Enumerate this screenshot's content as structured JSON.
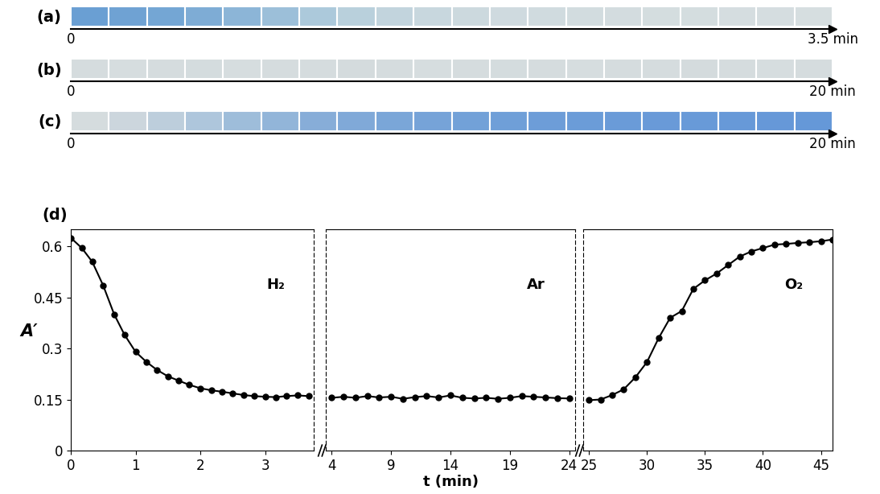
{
  "chart_data": [
    {
      "type": "strip",
      "panel_label": "(a)",
      "xlim": [
        0,
        3.5
      ],
      "xticks": [
        0,
        {
          "value": 3.5,
          "label": "3.5 min"
        }
      ],
      "colors": [
        "#6a9fd3",
        "#6fa2d3",
        "#74a6d4",
        "#7eacd5",
        "#8cb5d7",
        "#9cbfd9",
        "#acc9db",
        "#b9d0dc",
        "#c2d4dd",
        "#c8d7de",
        "#ccd9de",
        "#cfdadf",
        "#d0dbdf",
        "#d2dcdf",
        "#d3dcdf",
        "#d4dddf",
        "#d4dddf",
        "#d5dde0",
        "#d5dde0",
        "#d6dee0"
      ]
    },
    {
      "type": "strip",
      "panel_label": "(b)",
      "xlim": [
        0,
        20
      ],
      "xticks": [
        0,
        {
          "value": 20,
          "label": "20 min"
        }
      ],
      "colors": [
        "#d5dcde",
        "#d6dddf",
        "#d5dcde",
        "#d4dcde",
        "#d6dddf",
        "#d5dcde",
        "#d5dcde",
        "#d4dbdd",
        "#d5dcde",
        "#d6dddf",
        "#d5dcde",
        "#d4dcde",
        "#d5dcde",
        "#d6dddf",
        "#d5dcde",
        "#d5dcde",
        "#d4dbdd",
        "#d5dcde",
        "#d6dddf",
        "#d5dcde"
      ]
    },
    {
      "type": "strip",
      "panel_label": "(c)",
      "xlim": [
        0,
        20
      ],
      "xticks": [
        0,
        {
          "value": 20,
          "label": "20 min"
        }
      ],
      "colors": [
        "#d5dcde",
        "#ccd6dd",
        "#bdcedc",
        "#aec6dc",
        "#9ebdda",
        "#92b5d9",
        "#87add8",
        "#80a9d8",
        "#7aa6d8",
        "#76a3d8",
        "#72a1d8",
        "#6f9fd8",
        "#6d9dd8",
        "#6b9cd8",
        "#6a9bd8",
        "#699ad8",
        "#689ad8",
        "#6799d8",
        "#6698d8",
        "#6598d8"
      ]
    },
    {
      "type": "line",
      "panel_label": "(d)",
      "y_label": "A′",
      "annotation": "H₂",
      "color": "#000000",
      "marker": "o",
      "line_style": "solid",
      "xlim": [
        0,
        3.75
      ],
      "xticks": [
        0,
        1,
        2,
        3
      ],
      "ylim": [
        0,
        0.65
      ],
      "yticks": [
        0,
        0.15,
        0.3,
        0.45,
        0.6
      ],
      "x": [
        0,
        0.17,
        0.33,
        0.5,
        0.67,
        0.83,
        1,
        1.17,
        1.33,
        1.5,
        1.67,
        1.83,
        2,
        2.17,
        2.33,
        2.5,
        2.67,
        2.83,
        3,
        3.17,
        3.33,
        3.5,
        3.67
      ],
      "values": [
        0.625,
        0.595,
        0.555,
        0.485,
        0.4,
        0.34,
        0.29,
        0.26,
        0.237,
        0.218,
        0.205,
        0.193,
        0.183,
        0.177,
        0.173,
        0.168,
        0.163,
        0.16,
        0.158,
        0.157,
        0.16,
        0.162,
        0.16
      ]
    },
    {
      "type": "line",
      "x_label": "t (min)",
      "annotation": "Ar",
      "tick_labels": "x",
      "color": "#000000",
      "marker": "o",
      "line_style": "solid",
      "xlim": [
        3.5,
        24.5
      ],
      "xticks": [
        4,
        9,
        14,
        19,
        24
      ],
      "x": [
        4,
        5,
        6,
        7,
        8,
        9,
        10,
        11,
        12,
        13,
        14,
        15,
        16,
        17,
        18,
        19,
        20,
        21,
        22,
        23,
        24
      ],
      "values": [
        0.155,
        0.158,
        0.155,
        0.16,
        0.156,
        0.158,
        0.152,
        0.157,
        0.16,
        0.156,
        0.162,
        0.155,
        0.153,
        0.155,
        0.152,
        0.155,
        0.16,
        0.158,
        0.156,
        0.154,
        0.153
      ]
    },
    {
      "type": "line",
      "annotation": "O₂",
      "tick_labels": "x",
      "color": "#000000",
      "marker": "o",
      "line_style": "solid",
      "xlim": [
        24.5,
        46
      ],
      "xticks": [
        25,
        30,
        35,
        40,
        45
      ],
      "x": [
        25,
        26,
        27,
        28,
        29,
        30,
        31,
        32,
        33,
        34,
        35,
        36,
        37,
        38,
        39,
        40,
        41,
        42,
        43,
        44,
        45,
        46
      ],
      "values": [
        0.148,
        0.15,
        0.163,
        0.18,
        0.215,
        0.26,
        0.33,
        0.39,
        0.41,
        0.475,
        0.5,
        0.52,
        0.545,
        0.57,
        0.585,
        0.595,
        0.605,
        0.607,
        0.61,
        0.612,
        0.615,
        0.62
      ]
    }
  ]
}
